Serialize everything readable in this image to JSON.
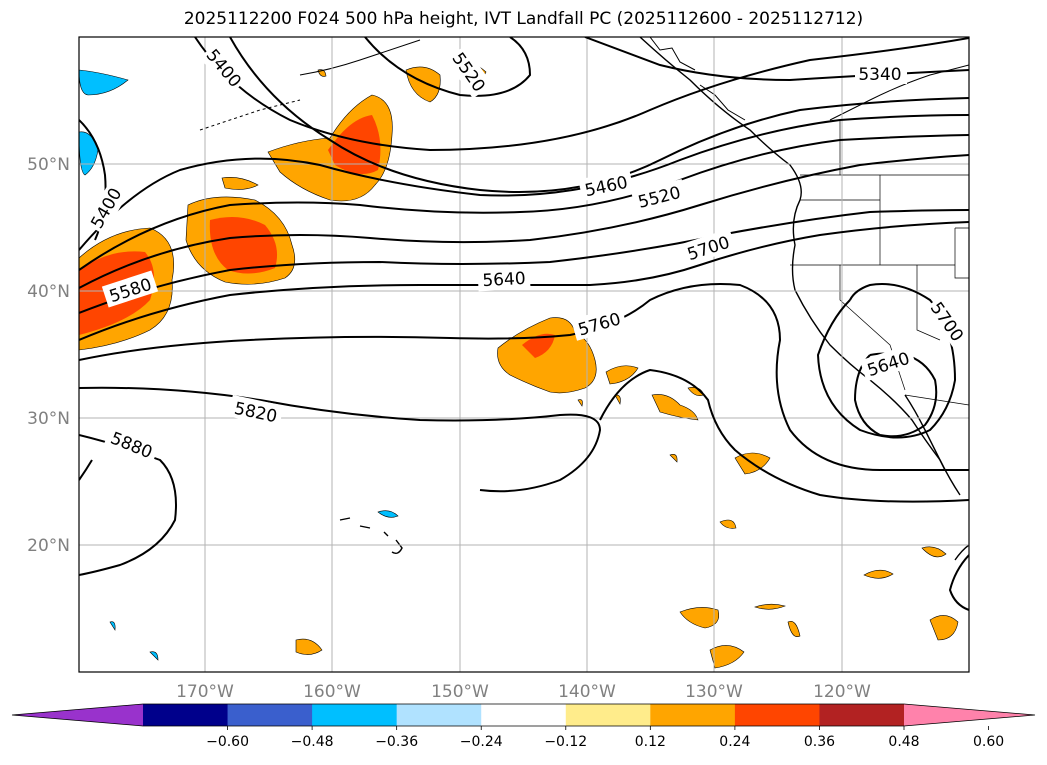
{
  "title": "2025112200 F024 500 hPa height, IVT Landfall PC (2025112600 - 2025112712)",
  "map": {
    "lat_labels": [
      {
        "text": "50°N",
        "lat": 50
      },
      {
        "text": "40°N",
        "lat": 40
      },
      {
        "text": "30°N",
        "lat": 30
      },
      {
        "text": "20°N",
        "lat": 20
      }
    ],
    "lon_labels": [
      {
        "text": "170°W",
        "lon": -170
      },
      {
        "text": "160°W",
        "lon": -160
      },
      {
        "text": "150°W",
        "lon": -150
      },
      {
        "text": "140°W",
        "lon": -140
      },
      {
        "text": "130°W",
        "lon": -130
      },
      {
        "text": "120°W",
        "lon": -120
      }
    ],
    "contour_labels": [
      "5400",
      "5520",
      "5340",
      "5400",
      "5460",
      "5520",
      "5580",
      "5640",
      "5700",
      "5760",
      "5820",
      "5880",
      "5700",
      "5640"
    ],
    "gridlines": true
  },
  "colorbar": {
    "extend": "both",
    "colors": [
      "#9932cc",
      "#00008b",
      "#3a5fcd",
      "#00bfff",
      "#b0e2ff",
      "#ffffff",
      "#ffec8b",
      "#ffa500",
      "#ff4500",
      "#b22222",
      "#ff82ab"
    ],
    "ticks": [
      "−0.60",
      "−0.48",
      "−0.36",
      "−0.24",
      "−0.12",
      "0.12",
      "0.24",
      "0.36",
      "0.48",
      "0.60"
    ]
  }
}
